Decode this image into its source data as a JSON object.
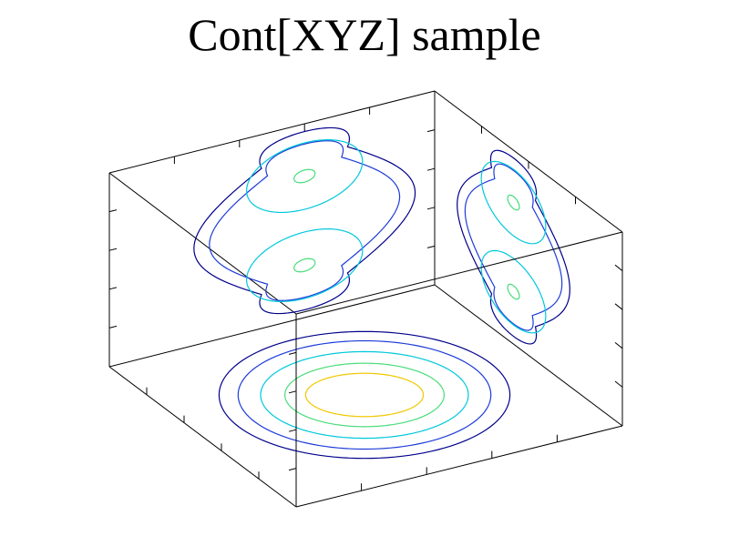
{
  "chart_data": {
    "type": "contour",
    "title": "Cont[XYZ] sample",
    "xlabel": "",
    "ylabel": "",
    "zlabel": "",
    "projections": [
      {
        "plane": "bottom",
        "levels": [
          {
            "level": 1,
            "color": "#00008b",
            "rx": 0.84,
            "ry": 0.82
          },
          {
            "level": 2,
            "color": "#1e3cd8",
            "rx": 0.73,
            "ry": 0.7
          },
          {
            "level": 3,
            "color": "#00c8dc",
            "rx": 0.6,
            "ry": 0.56
          },
          {
            "level": 4,
            "color": "#46dc78",
            "rx": 0.46,
            "ry": 0.41
          },
          {
            "level": 5,
            "color": "#f0c800",
            "rx": 0.34,
            "ry": 0.28
          }
        ]
      },
      {
        "plane": "back",
        "levels": [
          {
            "level": 1,
            "color": "#00008b",
            "scale": 1.0
          },
          {
            "level": 2,
            "color": "#1e3cd8",
            "scale": 0.86
          },
          {
            "level": 3,
            "color": "#00c8dc",
            "scale": 0.66
          },
          {
            "level": 4,
            "color": "#46dc78",
            "scale": 0.12
          }
        ]
      },
      {
        "plane": "side",
        "levels": [
          {
            "level": 1,
            "color": "#00008b",
            "scale": 1.0
          },
          {
            "level": 2,
            "color": "#1e3cd8",
            "scale": 0.86
          },
          {
            "level": 3,
            "color": "#00c8dc",
            "scale": 0.66
          },
          {
            "level": 4,
            "color": "#46dc78",
            "scale": 0.12
          }
        ]
      }
    ],
    "grid": false,
    "legend": "none"
  }
}
